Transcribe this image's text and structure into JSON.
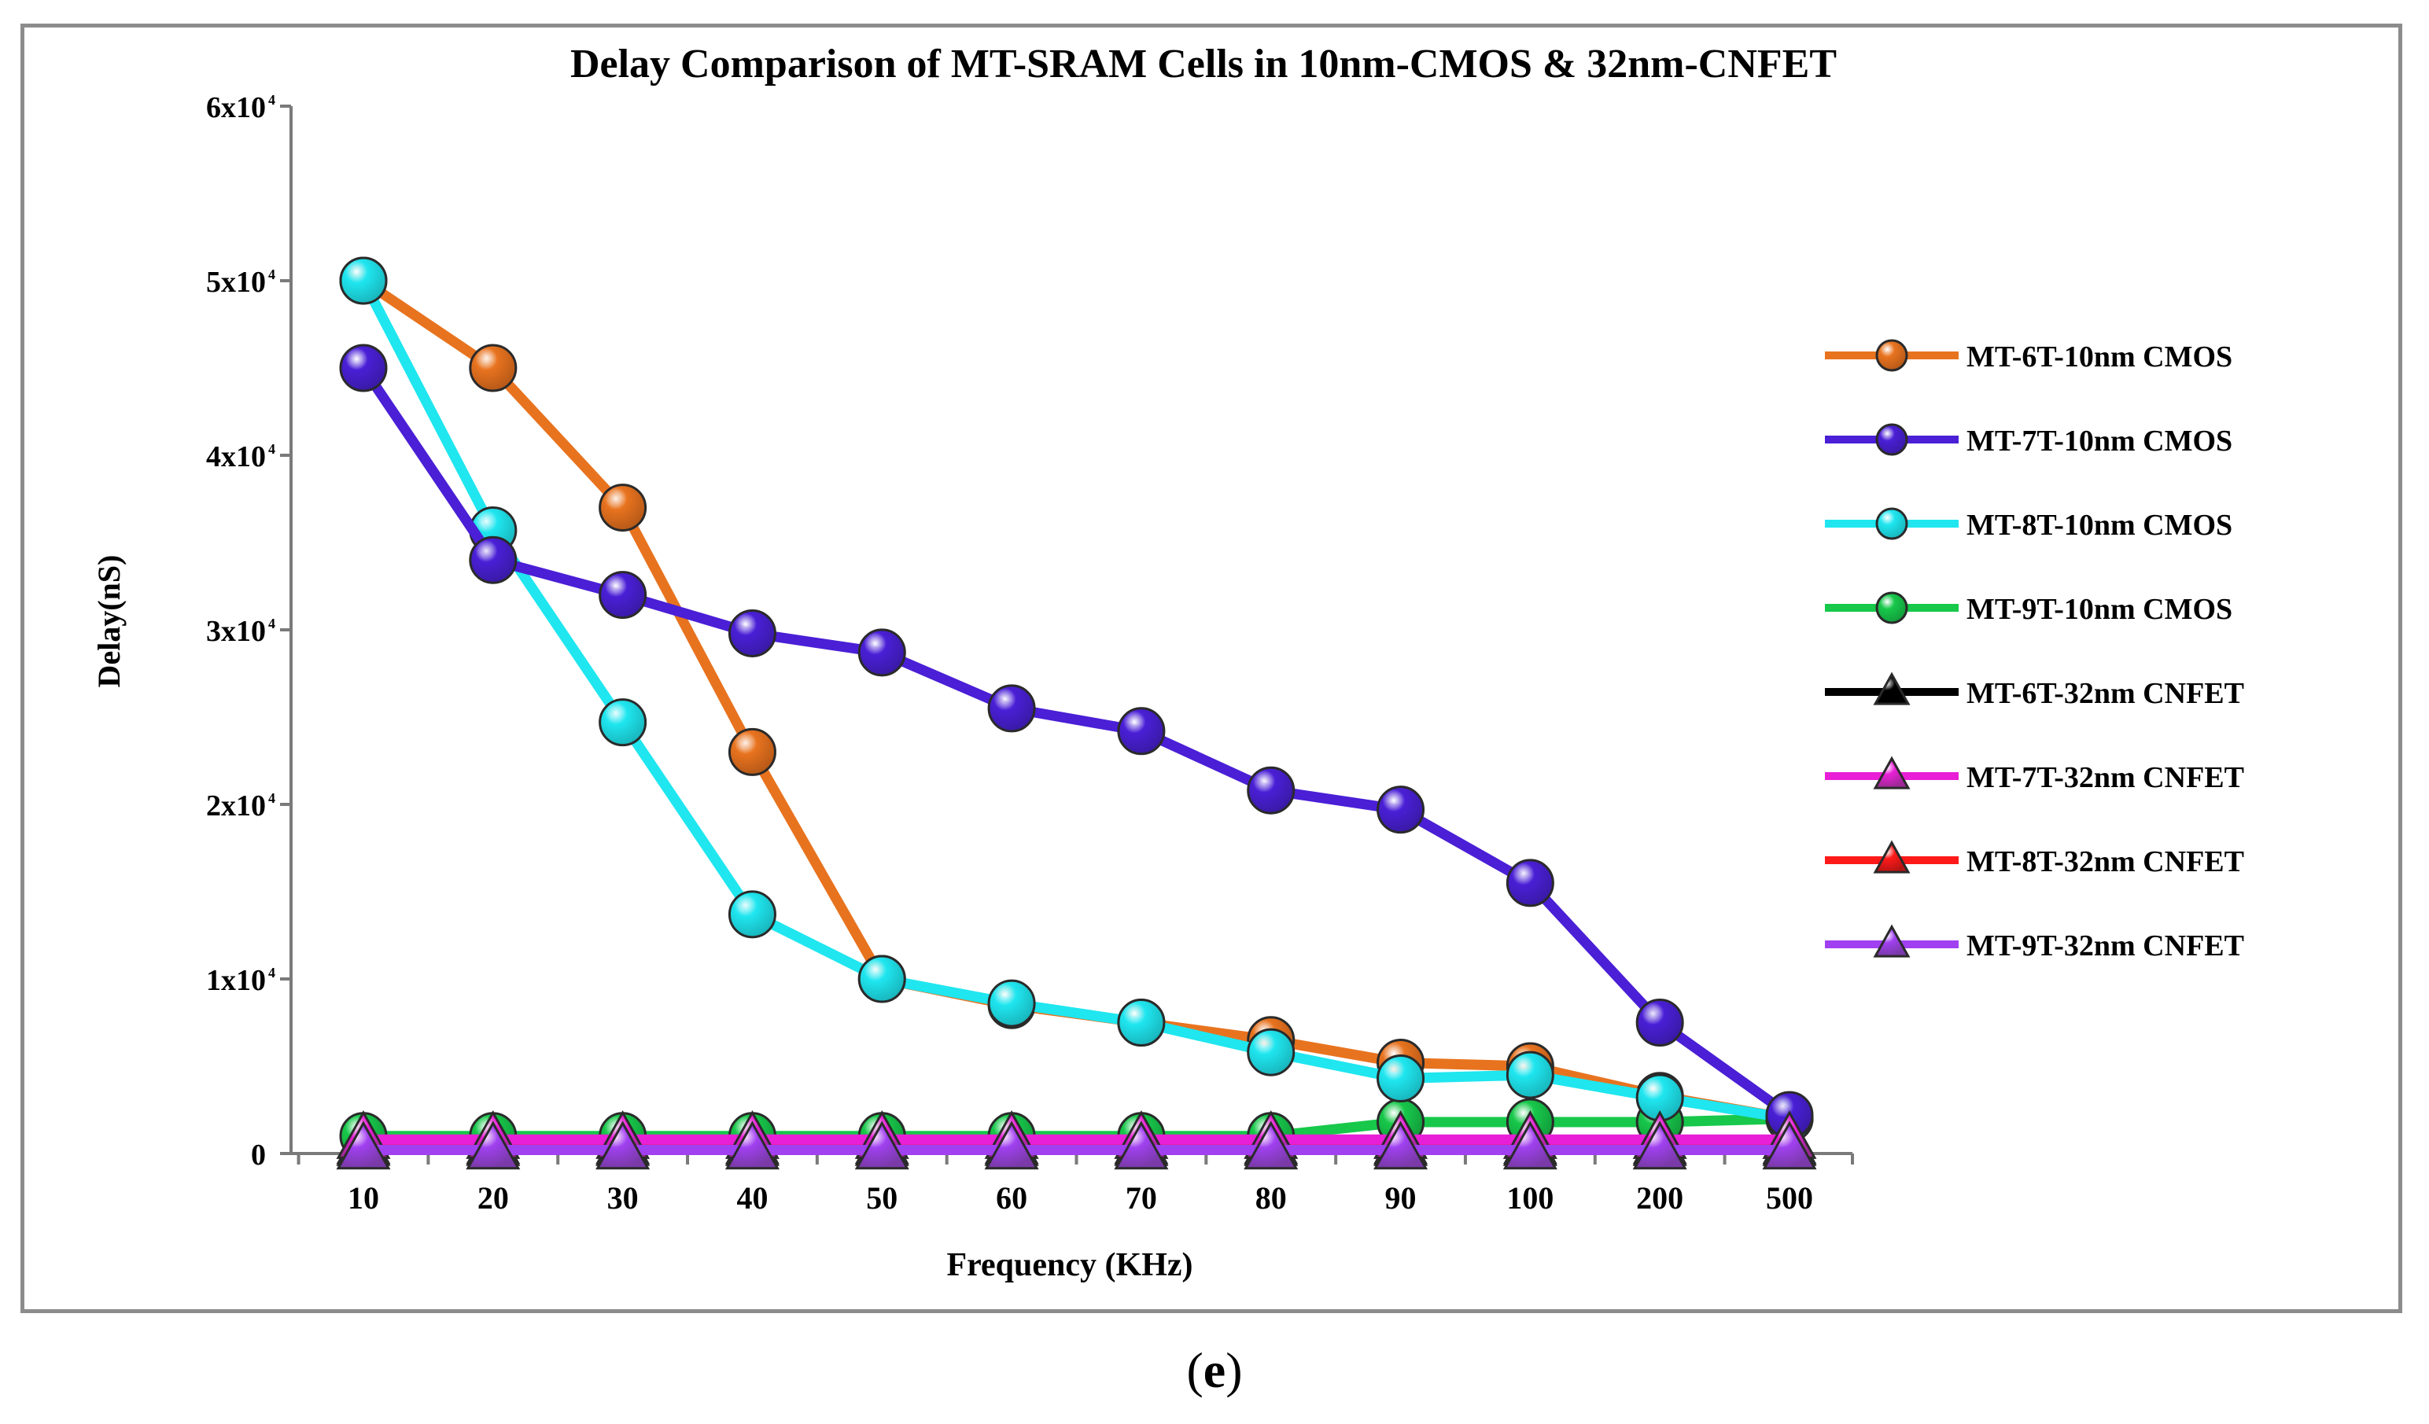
{
  "caption": {
    "open": "(",
    "letter": "e",
    "close": ")"
  },
  "chart_data": {
    "type": "line",
    "title": "Delay Comparison of MT-SRAM Cells in 10nm-CMOS & 32nm-CNFET",
    "xlabel": "Frequency (KHz)",
    "ylabel": "Delay(nS)",
    "categories": [
      "10",
      "20",
      "30",
      "40",
      "50",
      "60",
      "70",
      "80",
      "90",
      "100",
      "200",
      "500"
    ],
    "ylim": [
      0,
      6
    ],
    "yticks": [
      {
        "value": 0,
        "label": "0",
        "exp": ""
      },
      {
        "value": 1,
        "label": "1x10",
        "exp": "4"
      },
      {
        "value": 2,
        "label": "2x10",
        "exp": "4"
      },
      {
        "value": 3,
        "label": "3x10",
        "exp": "4"
      },
      {
        "value": 4,
        "label": "4x10",
        "exp": "4"
      },
      {
        "value": 5,
        "label": "5x10",
        "exp": "4"
      },
      {
        "value": 6,
        "label": "6x10",
        "exp": "4"
      }
    ],
    "series": [
      {
        "name": "MT-6T-10nm CMOS",
        "color": "#e8731f",
        "marker": "circle",
        "marker_color": "#b85a18",
        "values": [
          5.0,
          4.5,
          3.7,
          2.3,
          1.0,
          0.85,
          0.75,
          0.65,
          0.52,
          0.5,
          0.33,
          0.2
        ]
      },
      {
        "name": "MT-7T-10nm CMOS",
        "color": "#4a1fd6",
        "marker": "circle",
        "marker_color": "#3a1aa8",
        "values": [
          4.5,
          3.4,
          3.2,
          2.98,
          2.87,
          2.55,
          2.42,
          2.08,
          1.97,
          1.55,
          0.75,
          0.22
        ]
      },
      {
        "name": "MT-8T-10nm CMOS",
        "color": "#1fe6ef",
        "marker": "circle",
        "marker_color": "#19b8bf",
        "values": [
          5.0,
          3.57,
          2.47,
          1.37,
          1.0,
          0.86,
          0.75,
          0.58,
          0.43,
          0.45,
          0.32,
          0.2
        ]
      },
      {
        "name": "MT-9T-10nm CMOS",
        "color": "#17c84a",
        "marker": "circle",
        "marker_color": "#139e3c",
        "values": [
          0.1,
          0.1,
          0.1,
          0.1,
          0.1,
          0.1,
          0.1,
          0.1,
          0.18,
          0.18,
          0.18,
          0.2
        ]
      },
      {
        "name": "MT-6T-32nm CNFET",
        "color": "#000000",
        "marker": "triangle",
        "marker_color": "#000000",
        "values": [
          0.05,
          0.05,
          0.05,
          0.05,
          0.05,
          0.05,
          0.05,
          0.05,
          0.05,
          0.05,
          0.05,
          0.05
        ]
      },
      {
        "name": "MT-7T-32nm CNFET",
        "color": "#e81fd6",
        "marker": "triangle",
        "marker_color": "#9c2a94",
        "values": [
          0.08,
          0.08,
          0.08,
          0.08,
          0.08,
          0.08,
          0.08,
          0.08,
          0.08,
          0.08,
          0.08,
          0.08
        ]
      },
      {
        "name": "MT-8T-32nm CNFET",
        "color": "#ff1a1a",
        "marker": "triangle",
        "marker_color": "#b81414",
        "values": [
          0.04,
          0.04,
          0.04,
          0.04,
          0.04,
          0.04,
          0.04,
          0.04,
          0.04,
          0.04,
          0.04,
          0.04
        ]
      },
      {
        "name": "MT-9T-32nm CNFET",
        "color": "#a040f0",
        "marker": "triangle",
        "marker_color": "#7a3aa8",
        "values": [
          0.02,
          0.02,
          0.02,
          0.02,
          0.02,
          0.02,
          0.02,
          0.02,
          0.02,
          0.02,
          0.02,
          0.02
        ]
      }
    ],
    "legend_position": "right"
  }
}
